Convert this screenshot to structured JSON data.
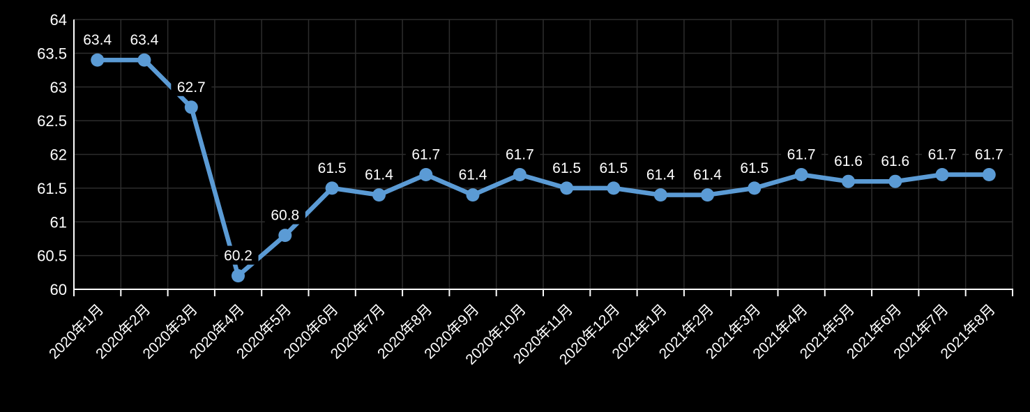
{
  "chart_data": {
    "type": "line",
    "categories": [
      "2020年1月",
      "2020年2月",
      "2020年3月",
      "2020年4月",
      "2020年5月",
      "2020年6月",
      "2020年7月",
      "2020年8月",
      "2020年9月",
      "2020年10月",
      "2020年11月",
      "2020年12月",
      "2021年1月",
      "2021年2月",
      "2021年3月",
      "2021年4月",
      "2021年5月",
      "2021年6月",
      "2021年7月",
      "2021年8月"
    ],
    "series": [
      {
        "values": [
          63.4,
          63.4,
          62.7,
          60.2,
          60.8,
          61.5,
          61.4,
          61.7,
          61.4,
          61.7,
          61.5,
          61.5,
          61.4,
          61.4,
          61.5,
          61.7,
          61.6,
          61.6,
          61.7,
          61.7
        ],
        "point_labels": [
          "63.4",
          "63.4",
          "62.7",
          "60.2",
          "60.8",
          "61.5",
          "61.4",
          "61.7",
          "61.4",
          "61.7",
          "61.5",
          "61.5",
          "61.4",
          "61.4",
          "61.5",
          "61.7",
          "61.6",
          "61.6",
          "61.7",
          "61.7"
        ]
      }
    ],
    "ylim": [
      60,
      64
    ],
    "ytick_values": [
      64,
      63.5,
      63,
      62.5,
      62,
      61.5,
      61,
      60.5,
      60
    ],
    "ytick_labels": [
      "64",
      "63.5",
      "63",
      "62.5",
      "62",
      "61.5",
      "61",
      "60.5",
      "60"
    ],
    "grid": true,
    "legend_position": "none",
    "data_labels_visible": true,
    "colors": {
      "background": "#000000",
      "series_line": "#5B9BD5",
      "marker_fill": "#5B9BD5",
      "axis_line": "#FFFFFF",
      "tick_mark": "#FFFFFF",
      "axis_text": "#FFFFFF",
      "data_label_text": "#FFFFFF",
      "data_label_fill": "#000000",
      "gridline": "#2D2D2D"
    }
  }
}
